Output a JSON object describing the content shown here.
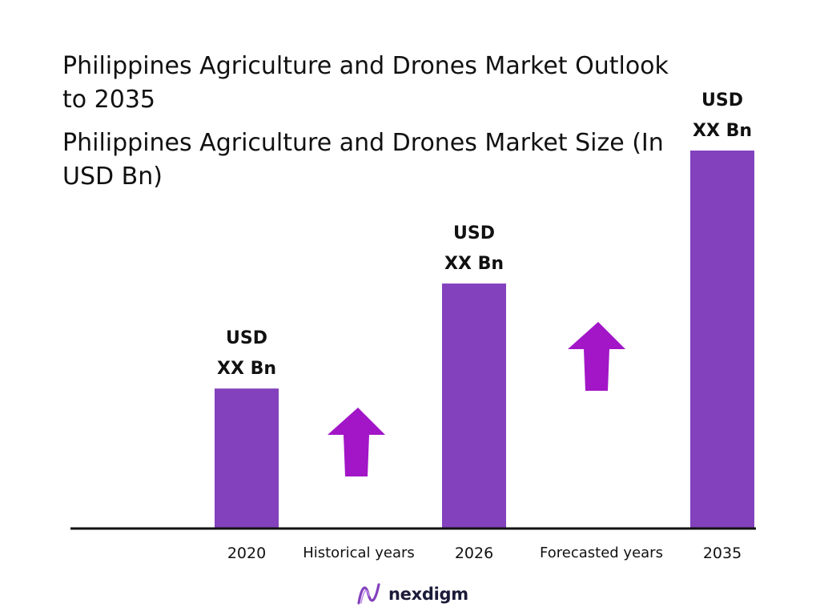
{
  "header": {
    "title": "Philippines Agriculture and Drones Market Outlook to 2035",
    "subtitle": "Philippines Agriculture and Drones Market Size (In USD Bn)"
  },
  "chart_data": {
    "type": "bar",
    "title": "Philippines Agriculture and Drones Market Size (In USD Bn)",
    "categories": [
      "2020",
      "2026",
      "2035"
    ],
    "values": [
      1.0,
      1.75,
      2.7
    ],
    "value_labels": [
      {
        "line1": "USD",
        "line2": "XX Bn"
      },
      {
        "line1": "USD",
        "line2": "XX Bn"
      },
      {
        "line1": "USD",
        "line2": "XX Bn"
      }
    ],
    "period_labels": [
      "Historical years",
      "Forecasted years"
    ],
    "ylim": [
      0,
      2.7
    ],
    "grid": false,
    "colors": {
      "bar": "#8341bd",
      "arrow": "#a216c7",
      "axis": "#111111"
    },
    "icons": [
      "growth-arrow-icon",
      "growth-arrow-icon"
    ]
  },
  "brand": {
    "name": "nexdigm",
    "icon": "nexdigm-logo-icon",
    "accent": "#8341bd"
  }
}
